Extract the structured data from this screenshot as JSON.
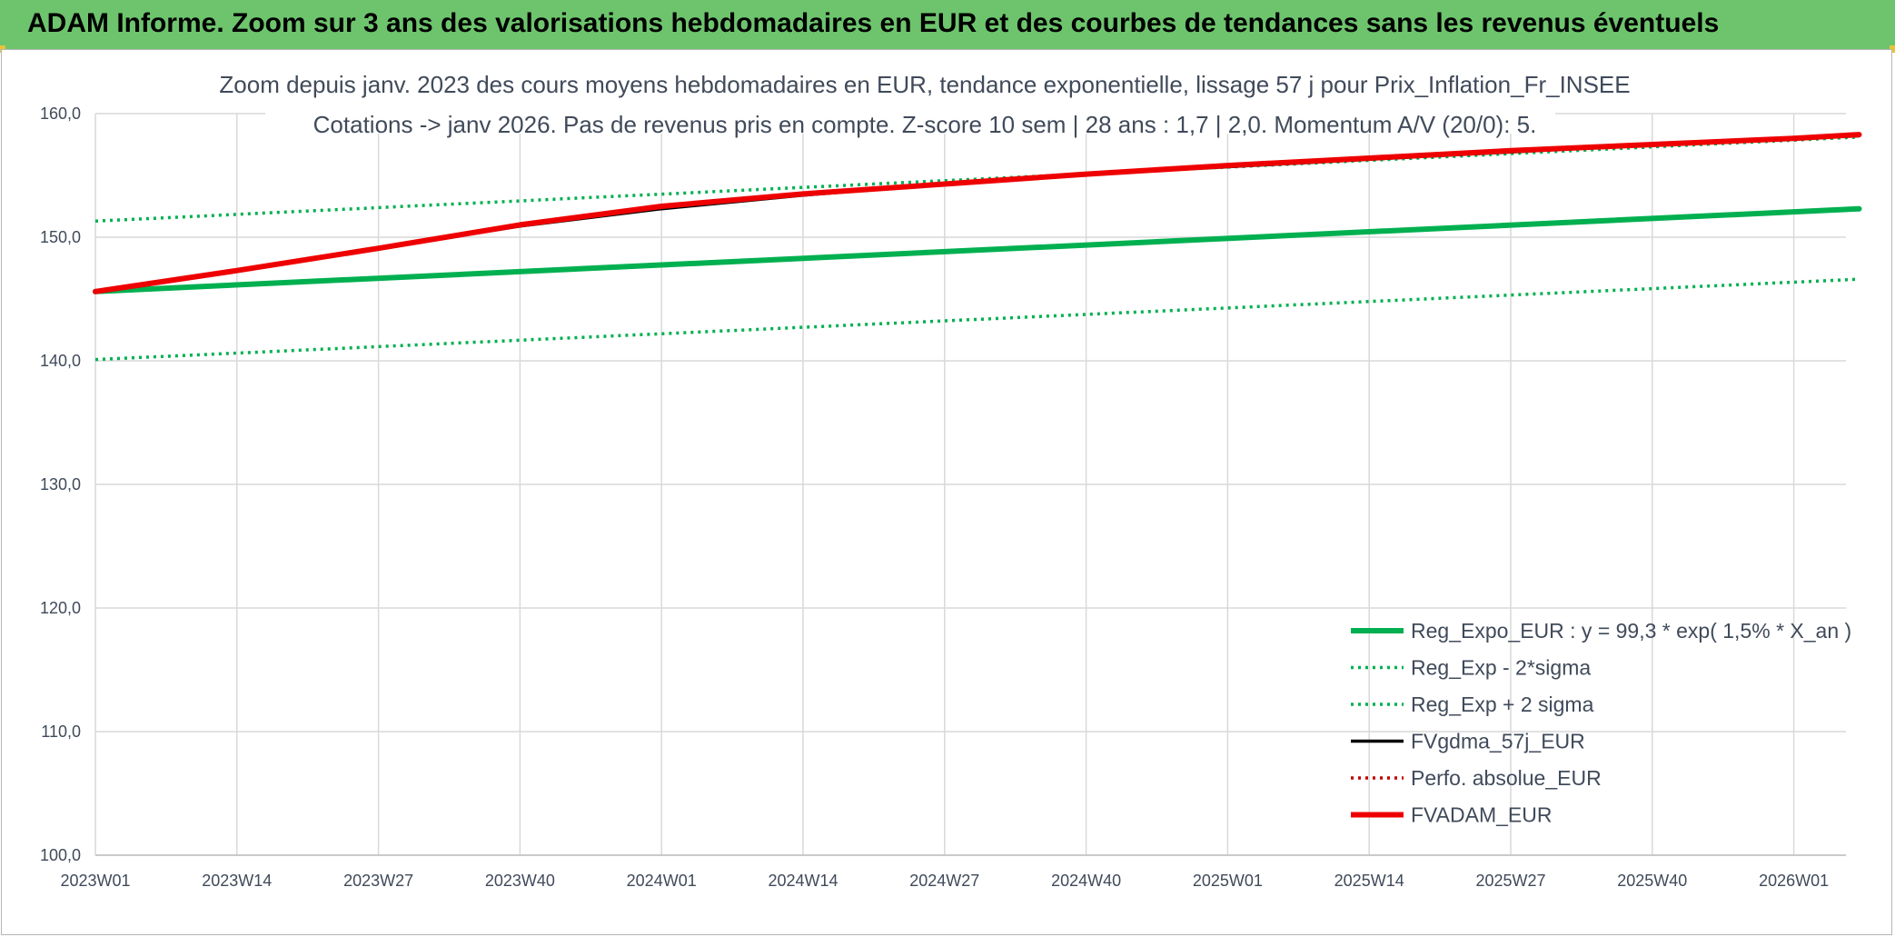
{
  "banner": {
    "title": "ADAM Informe. Zoom sur 3 ans des valorisations hebdomadaires en EUR et des courbes de tendances sans les revenus éventuels"
  },
  "colors": {
    "banner_bg": "#6dc46d",
    "reg_expo": "#00b050",
    "fvgdma": "#000000",
    "perfo": "#c00000",
    "fvadam": "#ee0000",
    "grid": "#d9d9d9",
    "text": "#404a5a"
  },
  "chart_data": {
    "type": "line",
    "title_lines": [
      "Zoom depuis janv. 2023 des cours moyens hebdomadaires en EUR, tendance exponentielle, lissage 57 j pour Prix_Inflation_Fr_INSEE",
      "Cotations -> janv 2026. Pas de revenus pris en compte. Z-score 10 sem | 28 ans : 1,7 | 2,0. Momentum A/V (20/0): 5."
    ],
    "x_ticks": [
      "2023W01",
      "2023W14",
      "2023W27",
      "2023W40",
      "2024W01",
      "2024W14",
      "2024W27",
      "2024W40",
      "2025W01",
      "2025W14",
      "2025W27",
      "2025W40",
      "2026W01"
    ],
    "x_range_weeks": [
      0,
      162
    ],
    "y_ticks": [
      "100,0",
      "110,0",
      "120,0",
      "130,0",
      "140,0",
      "150,0",
      "160,0"
    ],
    "ylim": [
      100,
      160
    ],
    "grid": true,
    "legend_position": "bottom-right",
    "series": [
      {
        "name": "Reg_Expo_EUR : y = 99,3 * exp( 1,5% *  X_an )",
        "style": "solid-thick",
        "color": "#00b050",
        "x": [
          0,
          162
        ],
        "y": [
          145.6,
          152.3
        ]
      },
      {
        "name": "Reg_Exp - 2*sigma",
        "style": "dotted",
        "color": "#00b050",
        "x": [
          0,
          162
        ],
        "y": [
          140.1,
          146.6
        ]
      },
      {
        "name": "Reg_Exp + 2 sigma",
        "style": "dotted",
        "color": "#00b050",
        "x": [
          0,
          162
        ],
        "y": [
          151.3,
          158.1
        ]
      },
      {
        "name": "FVgdma_57j_EUR",
        "style": "solid-thin",
        "color": "#000000",
        "x": [
          0,
          13,
          26,
          39,
          52,
          65,
          78,
          91,
          104,
          117,
          130,
          143,
          156,
          162
        ],
        "y": [
          145.6,
          147.3,
          149.1,
          150.9,
          152.3,
          153.4,
          154.3,
          155.1,
          155.7,
          156.3,
          156.9,
          157.5,
          158.0,
          158.2
        ]
      },
      {
        "name": "Perfo. absolue_EUR",
        "style": "dotted",
        "color": "#c00000",
        "x": [],
        "y": []
      },
      {
        "name": "FVADAM_EUR",
        "style": "solid-thick",
        "color": "#ee0000",
        "x": [
          0,
          13,
          26,
          39,
          52,
          65,
          78,
          91,
          104,
          117,
          130,
          143,
          156,
          162
        ],
        "y": [
          145.6,
          147.3,
          149.1,
          151.0,
          152.5,
          153.5,
          154.3,
          155.1,
          155.8,
          156.4,
          157.0,
          157.5,
          158.0,
          158.3
        ]
      }
    ]
  }
}
